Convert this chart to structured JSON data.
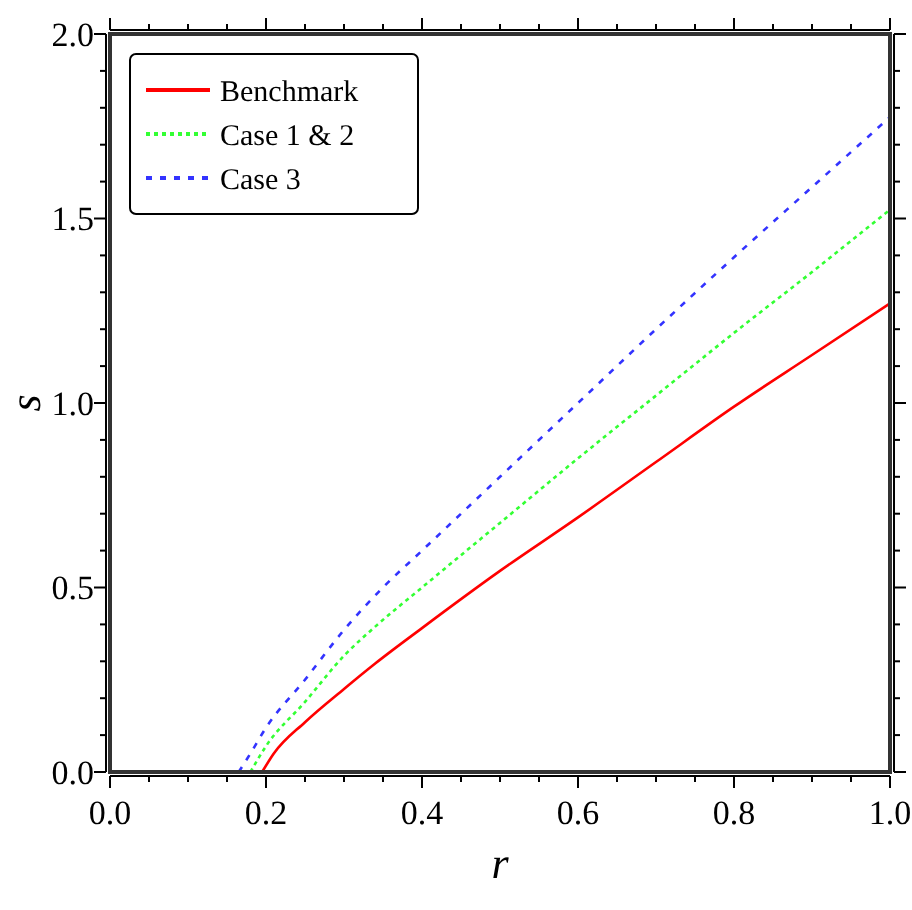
{
  "chart_data": {
    "type": "line",
    "xlabel": "r",
    "ylabel": "s",
    "xlim": [
      0,
      1
    ],
    "ylim": [
      0,
      2
    ],
    "xticks": [
      {
        "value": 0,
        "label": "0.0"
      },
      {
        "value": 0.05,
        "label": null
      },
      {
        "value": 0.1,
        "label": null
      },
      {
        "value": 0.15,
        "label": null
      },
      {
        "value": 0.2,
        "label": "0.2"
      },
      {
        "value": 0.25,
        "label": null
      },
      {
        "value": 0.3,
        "label": null
      },
      {
        "value": 0.35,
        "label": null
      },
      {
        "value": 0.4,
        "label": "0.4"
      },
      {
        "value": 0.45,
        "label": null
      },
      {
        "value": 0.5,
        "label": null
      },
      {
        "value": 0.55,
        "label": null
      },
      {
        "value": 0.6,
        "label": "0.6"
      },
      {
        "value": 0.65,
        "label": null
      },
      {
        "value": 0.7,
        "label": null
      },
      {
        "value": 0.75,
        "label": null
      },
      {
        "value": 0.8,
        "label": "0.8"
      },
      {
        "value": 0.85,
        "label": null
      },
      {
        "value": 0.9,
        "label": null
      },
      {
        "value": 0.95,
        "label": null
      },
      {
        "value": 1,
        "label": "1.0"
      }
    ],
    "yticks": [
      {
        "value": 0,
        "label": "0.0"
      },
      {
        "value": 0.1,
        "label": null
      },
      {
        "value": 0.2,
        "label": null
      },
      {
        "value": 0.3,
        "label": null
      },
      {
        "value": 0.4,
        "label": null
      },
      {
        "value": 0.5,
        "label": "0.5"
      },
      {
        "value": 0.6,
        "label": null
      },
      {
        "value": 0.7,
        "label": null
      },
      {
        "value": 0.8,
        "label": null
      },
      {
        "value": 0.9,
        "label": null
      },
      {
        "value": 1,
        "label": "1.0"
      },
      {
        "value": 1.1,
        "label": null
      },
      {
        "value": 1.2,
        "label": null
      },
      {
        "value": 1.3,
        "label": null
      },
      {
        "value": 1.4,
        "label": null
      },
      {
        "value": 1.5,
        "label": "1.5"
      },
      {
        "value": 1.6,
        "label": null
      },
      {
        "value": 1.7,
        "label": null
      },
      {
        "value": 1.8,
        "label": null
      },
      {
        "value": 1.9,
        "label": null
      },
      {
        "value": 2,
        "label": "2.0"
      }
    ],
    "grid": false,
    "legend": "top left",
    "marker": "none",
    "series": [
      {
        "name": "Benchmark",
        "color": "#ff0000",
        "line_style": "solid",
        "x": [
          0.195,
          0.21,
          0.25,
          0.3,
          0.34,
          0.4,
          0.5,
          0.6,
          0.7,
          0.8,
          0.9,
          1.0
        ],
        "values": [
          0,
          0.05,
          0.135,
          0.225,
          0.294,
          0.39,
          0.545,
          0.69,
          0.84,
          0.99,
          1.13,
          1.27
        ]
      },
      {
        "name": "Case 1 & 2",
        "color": "#33ff33",
        "line_style": "dotted",
        "x": [
          0.18,
          0.2,
          0.25,
          0.3,
          0.34,
          0.4,
          0.5,
          0.6,
          0.7,
          0.8,
          0.9,
          1.0
        ],
        "values": [
          0,
          0.07,
          0.19,
          0.315,
          0.394,
          0.5,
          0.675,
          0.85,
          1.02,
          1.19,
          1.355,
          1.524
        ]
      },
      {
        "name": "Case 3",
        "color": "#3333ff",
        "line_style": "dashed",
        "x": [
          0.165,
          0.18,
          0.2,
          0.25,
          0.3,
          0.35,
          0.4,
          0.5,
          0.6,
          0.7,
          0.8,
          0.9,
          1.0
        ],
        "values": [
          0,
          0.05,
          0.12,
          0.25,
          0.385,
          0.5,
          0.6,
          0.8,
          1.0,
          1.2,
          1.395,
          1.585,
          1.775
        ]
      }
    ]
  }
}
